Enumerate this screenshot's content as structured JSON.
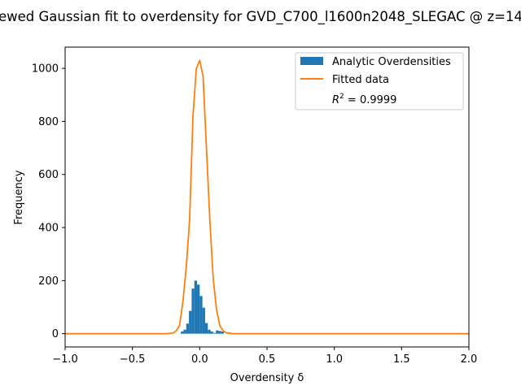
{
  "chart_data": {
    "type": "histogram",
    "title": "ewed Gaussian fit to overdensity for GVD_C700_l1600n2048_SLEGAC @ z=14",
    "xlabel": "Overdensity δ",
    "ylabel": "Frequency",
    "xlim": [
      -1.0,
      2.0
    ],
    "ylim": [
      -50,
      1080
    ],
    "x_ticks": [
      -1.0,
      -0.5,
      0.0,
      0.5,
      1.0,
      1.5,
      2.0
    ],
    "x_tick_labels": [
      "−1.0",
      "−0.5",
      "0.0",
      "0.5",
      "1.0",
      "1.5",
      "2.0"
    ],
    "y_ticks": [
      0,
      200,
      400,
      600,
      800,
      1000
    ],
    "y_tick_labels": [
      "0",
      "200",
      "400",
      "600",
      "800",
      "1000"
    ],
    "legend_position": "top-right",
    "legend": {
      "histogram_label": "Analytic Overdensities",
      "line_label": "Fitted data",
      "r2_label_prefix": "R",
      "r2_label_sup": "2",
      "r2_label_suffix": " = 0.9999"
    },
    "histogram": {
      "color": "#1f77b4",
      "bin_edges": [
        -0.14,
        -0.12,
        -0.1,
        -0.08,
        -0.06,
        -0.04,
        -0.02,
        0.0,
        0.02,
        0.04,
        0.06,
        0.08,
        0.1,
        0.12,
        0.14,
        0.16,
        0.18
      ],
      "counts": [
        8,
        15,
        38,
        86,
        170,
        200,
        185,
        142,
        98,
        40,
        15,
        8,
        3,
        12,
        10,
        8
      ]
    },
    "fitted_line": {
      "color": "#ff7f0e",
      "x": [
        -1.0,
        -0.25,
        -0.2,
        -0.175,
        -0.15,
        -0.125,
        -0.1,
        -0.075,
        -0.05,
        -0.025,
        0.0,
        0.025,
        0.05,
        0.075,
        0.1,
        0.125,
        0.15,
        0.175,
        0.2,
        0.25,
        2.0
      ],
      "y": [
        0,
        0,
        2,
        10,
        30,
        120,
        250,
        430,
        820,
        1000,
        1030,
        970,
        700,
        430,
        210,
        90,
        30,
        10,
        3,
        0,
        0
      ]
    }
  }
}
